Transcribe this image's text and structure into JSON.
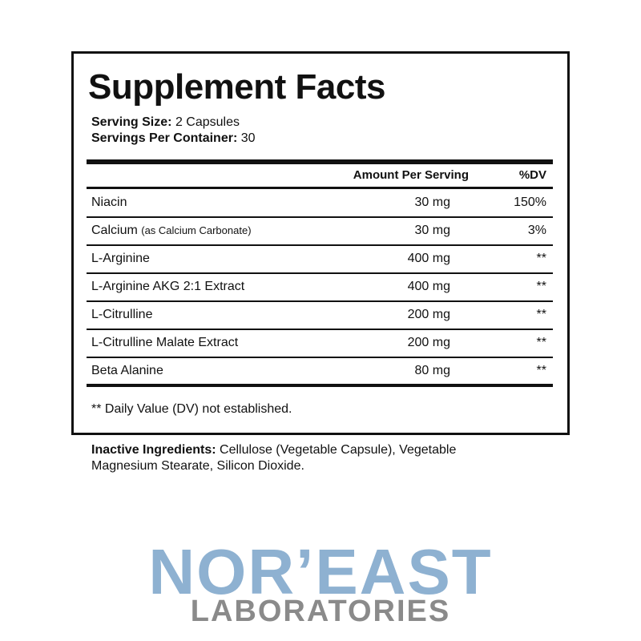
{
  "title": "Supplement Facts",
  "serving": [
    {
      "label": "Serving Size:",
      "value": "2 Capsules"
    },
    {
      "label": "Servings Per Container:",
      "value": "30"
    }
  ],
  "table": {
    "header": [
      "Amount Per Serving",
      "%DV"
    ],
    "rows": [
      {
        "name": "Niacin",
        "amount": "30 mg",
        "dv": "150%"
      },
      {
        "name": "Calcium",
        "note": "(as Calcium Carbonate)",
        "amount": "30 mg",
        "dv": "3%"
      },
      {
        "name": "L-Arginine",
        "amount": "400 mg",
        "dv": "**"
      },
      {
        "name": "L-Arginine AKG 2:1 Extract",
        "amount": "400 mg",
        "dv": "**"
      },
      {
        "name": "L-Citrulline",
        "amount": "200 mg",
        "dv": "**"
      },
      {
        "name": "L-Citrulline Malate Extract",
        "amount": "200 mg",
        "dv": "**"
      },
      {
        "name": "Beta Alanine",
        "amount": "80 mg",
        "dv": "**"
      }
    ]
  },
  "footnote": "** Daily Value (DV) not established.",
  "inactive": {
    "label": "Inactive Ingredients:",
    "text": "Cellulose (Vegetable Capsule), Vegetable Magnesium Stearate, Silicon Dioxide."
  },
  "logo": {
    "name": "NOR’EAST",
    "sub": "LABORATORIES"
  }
}
